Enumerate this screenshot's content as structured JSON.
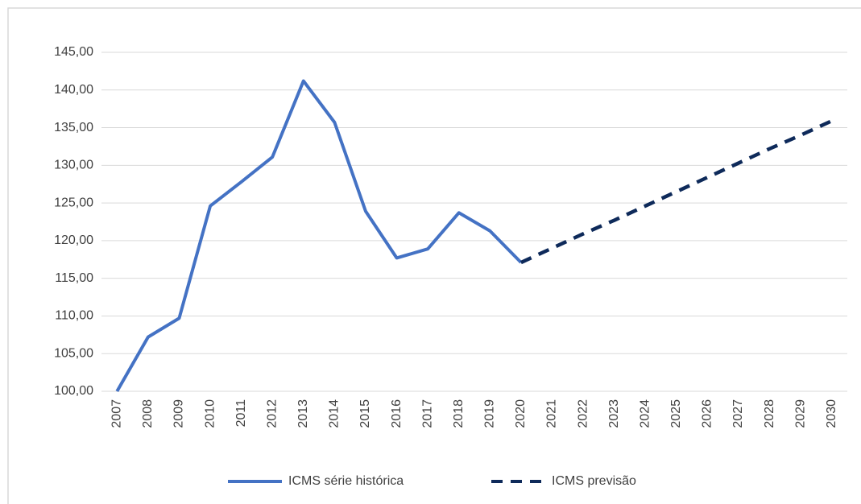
{
  "chart_data": {
    "type": "line",
    "categories": [
      "2007",
      "2008",
      "2009",
      "2010",
      "2011",
      "2012",
      "2013",
      "2014",
      "2015",
      "2016",
      "2017",
      "2018",
      "2019",
      "2020",
      "2021",
      "2022",
      "2023",
      "2024",
      "2025",
      "2026",
      "2027",
      "2028",
      "2029",
      "2030"
    ],
    "series": [
      {
        "name": "ICMS série histórica",
        "color": "#4472c4",
        "dash": false,
        "values": [
          100,
          107.2,
          109.7,
          124.6,
          127.8,
          131.1,
          141.2,
          135.7,
          123.9,
          117.7,
          118.9,
          123.7,
          121.3,
          117.1,
          null,
          null,
          null,
          null,
          null,
          null,
          null,
          null,
          null,
          null
        ]
      },
      {
        "name": "ICMS previsão",
        "color": "#0e2a5a",
        "dash": true,
        "values": [
          null,
          null,
          null,
          null,
          null,
          null,
          null,
          null,
          null,
          null,
          null,
          null,
          null,
          117.1,
          119.0,
          120.9,
          122.7,
          124.6,
          126.5,
          128.4,
          130.3,
          132.2,
          134.0,
          135.9
        ]
      }
    ],
    "ylim": [
      100,
      145
    ],
    "yticks": [
      {
        "value": 100,
        "label": "100,00"
      },
      {
        "value": 105,
        "label": "105,00"
      },
      {
        "value": 110,
        "label": "110,00"
      },
      {
        "value": 115,
        "label": "115,00"
      },
      {
        "value": 120,
        "label": "120,00"
      },
      {
        "value": 125,
        "label": "125,00"
      },
      {
        "value": 130,
        "label": "130,00"
      },
      {
        "value": 135,
        "label": "135,00"
      },
      {
        "value": 140,
        "label": "140,00"
      },
      {
        "value": 145,
        "label": "145,00"
      }
    ],
    "grid": true,
    "legend": "bottom"
  }
}
